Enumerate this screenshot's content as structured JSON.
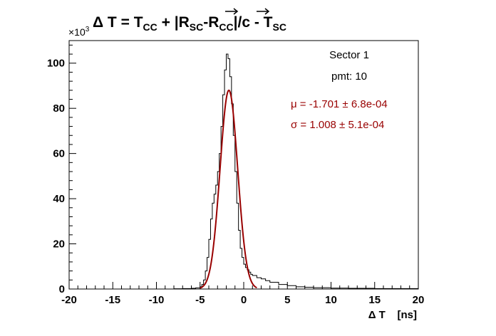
{
  "chart_data": {
    "type": "line",
    "title": {
      "lhs": "Δ T = T",
      "lhs_sub": "CC",
      "plus": " + |",
      "r1": "R",
      "r1_sub": "SC",
      "minus": "-",
      "r2": "R",
      "r2_sub": "CC",
      "over_c": "|/c - T",
      "tail_sub": "SC"
    },
    "xlabel": "Δ T    [ns]",
    "ylabel": "",
    "y_multiplier": "×10",
    "y_multiplier_exp": "3",
    "xlim": [
      -20,
      20
    ],
    "ylim": [
      0,
      110
    ],
    "x_ticks": [
      -20,
      -15,
      -10,
      -5,
      0,
      5,
      10,
      15,
      20
    ],
    "y_ticks": [
      0,
      20,
      40,
      60,
      80,
      100
    ],
    "x_tick_labels": [
      "-20",
      "-15",
      "-10",
      "-5",
      "0",
      "5",
      "10",
      "15",
      "20"
    ],
    "y_tick_labels": [
      "0",
      "20",
      "40",
      "60",
      "80",
      "100"
    ],
    "grid": false,
    "annotations": {
      "sector": "Sector 1",
      "pmt": "pmt: 10",
      "mu": "μ = -1.701 ± 6.8e-04",
      "sigma": "σ = 1.008 ± 5.1e-04"
    },
    "series": [
      {
        "kind": "histogram",
        "color": "#000000",
        "x": [
          -20,
          -19,
          -18,
          -17,
          -16,
          -15,
          -14,
          -13,
          -12,
          -11,
          -10,
          -9,
          -8,
          -7,
          -6,
          -5.5,
          -5,
          -4.8,
          -4.6,
          -4.4,
          -4.2,
          -4.0,
          -3.8,
          -3.6,
          -3.4,
          -3.2,
          -3.0,
          -2.8,
          -2.6,
          -2.4,
          -2.2,
          -2.0,
          -1.8,
          -1.6,
          -1.4,
          -1.2,
          -1.0,
          -0.8,
          -0.6,
          -0.4,
          -0.2,
          0.0,
          0.2,
          0.4,
          0.6,
          0.8,
          1.0,
          1.5,
          2,
          2.5,
          3,
          4,
          5,
          6,
          7,
          8,
          10,
          12,
          15,
          20
        ],
        "y": [
          0,
          0,
          0,
          0,
          0,
          0,
          0,
          0,
          0,
          0,
          0,
          0,
          0.1,
          0.2,
          0.3,
          0.5,
          1,
          2,
          4,
          8,
          14,
          22,
          31,
          38,
          42,
          46,
          52,
          60,
          72,
          86,
          97,
          104,
          102,
          94,
          82,
          68,
          52,
          38,
          26,
          18,
          14,
          11,
          9.5,
          8.5,
          7.5,
          6.5,
          6,
          5,
          4.5,
          3.7,
          3,
          2,
          1.5,
          1,
          0.8,
          0.6,
          0.4,
          0.3,
          0.2,
          0
        ]
      },
      {
        "kind": "gaussian_fit",
        "color": "#990000",
        "mean": -1.701,
        "sigma": 1.008,
        "amplitude": 88,
        "range": [
          -5,
          1.5
        ]
      }
    ]
  }
}
